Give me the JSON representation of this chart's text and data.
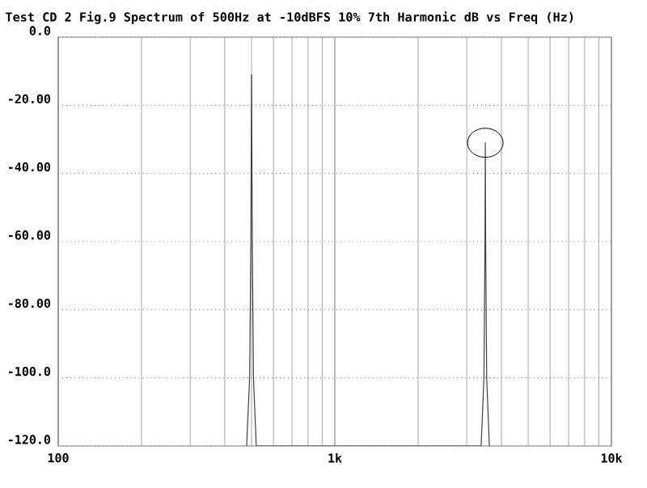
{
  "chart_data": {
    "type": "line",
    "title": "Test CD 2  Fig.9  Spectrum of 500Hz at -10dBFS 10% 7th Harmonic dB vs Freq (Hz)",
    "series": [
      {
        "color": "#404040",
        "x": [
          480,
          492,
          497,
          500,
          503,
          508,
          520,
          null,
          3380,
          3460,
          3490,
          3500,
          3510,
          3540,
          3620
        ],
        "values": [
          -120,
          -100,
          -60,
          -11,
          -60,
          -100,
          -120,
          null,
          -120,
          -100,
          -60,
          -31,
          -60,
          -100,
          -120
        ]
      }
    ],
    "log": "x",
    "xlim": [
      100,
      10000
    ],
    "xticks": [
      100,
      {
        "value": 1000,
        "label": "1k"
      },
      {
        "value": 10000,
        "label": "10k"
      }
    ],
    "ylim": [
      -120,
      0
    ],
    "yticks": [
      {
        "value": -120,
        "label": "-120.0"
      },
      {
        "value": -100,
        "label": "-100.0"
      },
      {
        "value": -80,
        "label": "-80.00"
      },
      {
        "value": -60,
        "label": "-60.00"
      },
      {
        "value": -40,
        "label": "-40.00"
      },
      {
        "value": -20,
        "label": "-20.00"
      },
      {
        "value": 0,
        "label": "0.0"
      }
    ],
    "grid": true,
    "line_style": "solid",
    "marker": "none"
  }
}
